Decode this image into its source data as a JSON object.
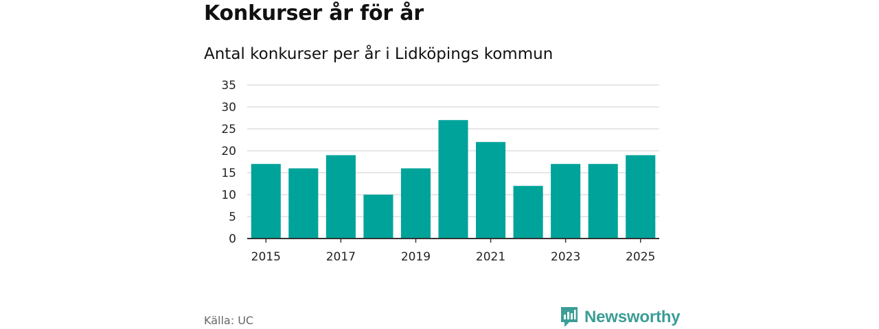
{
  "title": "Konkurser år för år",
  "subtitle": "Antal konkurser per år i Lidköpings kommun",
  "source": "Källa: UC",
  "brand": {
    "name": "Newsworthy",
    "icon": "newsworthy-logo-icon",
    "color": "#3b9d96"
  },
  "chart_data": {
    "type": "bar",
    "title": "Konkurser år för år",
    "subtitle": "Antal konkurser per år i Lidköpings kommun",
    "xlabel": "",
    "ylabel": "",
    "categories": [
      "2015",
      "2016",
      "2017",
      "2018",
      "2019",
      "2020",
      "2021",
      "2022",
      "2023",
      "2024",
      "2025"
    ],
    "values": [
      17,
      16,
      19,
      10,
      16,
      27,
      22,
      12,
      17,
      17,
      19
    ],
    "x_tick_labels": [
      "2015",
      "2017",
      "2019",
      "2021",
      "2023",
      "2025"
    ],
    "y_ticks": [
      0,
      5,
      10,
      15,
      20,
      25,
      30,
      35
    ],
    "ylim": [
      0,
      35
    ],
    "grid": true,
    "bar_color": "#00a39a"
  }
}
